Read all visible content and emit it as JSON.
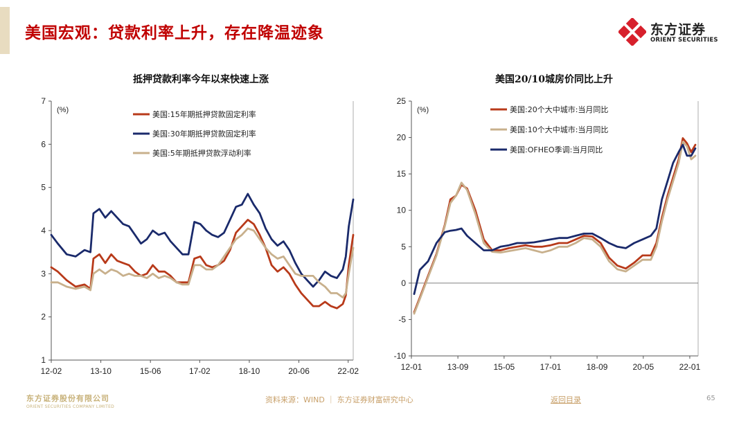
{
  "slide": {
    "title": "美国宏观：贷款利率上升，存在降温迹象",
    "logo_cn": "东方证券",
    "logo_en": "ORIENT SECURITIES",
    "footer_company_cn": "东方证券股份有限公司",
    "footer_company_en": "ORIENT SECURITIES COMPANY LIMITED",
    "source": "资料来源：WIND ｜ 东方证券财富研究中心",
    "back_link": "返回目录",
    "page_number": "65",
    "colors": {
      "title_red": "#c00000",
      "logo_red": "#d7202c",
      "gold": "#c8b27a"
    }
  },
  "chart_data": [
    {
      "type": "line",
      "title": "抵押贷款利率今年以来快速上涨",
      "unit_label": "(%)",
      "xlabel": "",
      "ylabel": "",
      "ylim": [
        1,
        7
      ],
      "yticks": [
        "1",
        "2",
        "3",
        "4",
        "5",
        "6",
        "7"
      ],
      "xlim": [
        2012.08,
        2022.25
      ],
      "xticks": [
        {
          "label": "12-02",
          "t": 2012.08
        },
        {
          "label": "13-10",
          "t": 2013.75
        },
        {
          "label": "15-06",
          "t": 2015.42
        },
        {
          "label": "17-02",
          "t": 2017.08
        },
        {
          "label": "18-10",
          "t": 2018.75
        },
        {
          "label": "20-06",
          "t": 2020.42
        },
        {
          "label": "22-02",
          "t": 2022.08
        }
      ],
      "legend_position": "top-left",
      "series": [
        {
          "name": "美国:15年期抵押贷款固定利率",
          "color": "#b83a1a",
          "x": [
            2012.08,
            2012.3,
            2012.6,
            2012.9,
            2013.2,
            2013.4,
            2013.5,
            2013.7,
            2013.9,
            2014.1,
            2014.3,
            2014.5,
            2014.7,
            2014.9,
            2015.1,
            2015.3,
            2015.5,
            2015.7,
            2015.9,
            2016.1,
            2016.3,
            2016.5,
            2016.7,
            2016.9,
            2017.1,
            2017.3,
            2017.5,
            2017.7,
            2017.9,
            2018.1,
            2018.3,
            2018.5,
            2018.7,
            2018.9,
            2019.1,
            2019.3,
            2019.5,
            2019.7,
            2019.9,
            2020.1,
            2020.3,
            2020.5,
            2020.7,
            2020.9,
            2021.1,
            2021.3,
            2021.5,
            2021.7,
            2021.9,
            2022.0,
            2022.1,
            2022.25
          ],
          "y": [
            3.15,
            3.05,
            2.85,
            2.7,
            2.75,
            2.65,
            3.35,
            3.45,
            3.25,
            3.45,
            3.3,
            3.25,
            3.2,
            3.05,
            2.95,
            3.0,
            3.2,
            3.05,
            3.05,
            2.95,
            2.8,
            2.8,
            2.8,
            3.35,
            3.4,
            3.2,
            3.15,
            3.2,
            3.3,
            3.55,
            3.95,
            4.1,
            4.25,
            4.15,
            3.9,
            3.6,
            3.2,
            3.05,
            3.15,
            3.0,
            2.75,
            2.55,
            2.4,
            2.25,
            2.25,
            2.35,
            2.25,
            2.2,
            2.3,
            2.5,
            3.2,
            3.9
          ]
        },
        {
          "name": "美国:30年期抵押贷款固定利率",
          "color": "#1a2a6b",
          "x": [
            2012.08,
            2012.3,
            2012.6,
            2012.9,
            2013.2,
            2013.4,
            2013.5,
            2013.7,
            2013.9,
            2014.1,
            2014.3,
            2014.5,
            2014.7,
            2014.9,
            2015.1,
            2015.3,
            2015.5,
            2015.7,
            2015.9,
            2016.1,
            2016.3,
            2016.5,
            2016.7,
            2016.9,
            2017.1,
            2017.3,
            2017.5,
            2017.7,
            2017.9,
            2018.1,
            2018.3,
            2018.5,
            2018.7,
            2018.9,
            2019.1,
            2019.3,
            2019.5,
            2019.7,
            2019.9,
            2020.1,
            2020.3,
            2020.5,
            2020.7,
            2020.9,
            2021.1,
            2021.3,
            2021.5,
            2021.7,
            2021.9,
            2022.0,
            2022.1,
            2022.25
          ],
          "y": [
            3.9,
            3.7,
            3.45,
            3.4,
            3.55,
            3.5,
            4.4,
            4.5,
            4.3,
            4.45,
            4.3,
            4.15,
            4.1,
            3.9,
            3.7,
            3.8,
            4.0,
            3.9,
            3.95,
            3.75,
            3.6,
            3.45,
            3.45,
            4.2,
            4.15,
            4.0,
            3.9,
            3.85,
            3.95,
            4.25,
            4.55,
            4.6,
            4.85,
            4.6,
            4.4,
            4.05,
            3.8,
            3.65,
            3.75,
            3.55,
            3.25,
            3.0,
            2.85,
            2.7,
            2.85,
            3.05,
            2.95,
            2.9,
            3.1,
            3.4,
            4.1,
            4.72
          ]
        },
        {
          "name": "美国:5年期抵押贷款浮动利率",
          "color": "#c8b08c",
          "x": [
            2012.08,
            2012.3,
            2012.6,
            2012.9,
            2013.2,
            2013.4,
            2013.5,
            2013.7,
            2013.9,
            2014.1,
            2014.3,
            2014.5,
            2014.7,
            2014.9,
            2015.1,
            2015.3,
            2015.5,
            2015.7,
            2015.9,
            2016.1,
            2016.3,
            2016.5,
            2016.7,
            2016.9,
            2017.1,
            2017.3,
            2017.5,
            2017.7,
            2017.9,
            2018.1,
            2018.3,
            2018.5,
            2018.7,
            2018.9,
            2019.1,
            2019.3,
            2019.5,
            2019.7,
            2019.9,
            2020.1,
            2020.3,
            2020.5,
            2020.7,
            2020.9,
            2021.1,
            2021.3,
            2021.5,
            2021.7,
            2021.9,
            2022.0,
            2022.1,
            2022.25
          ],
          "y": [
            2.8,
            2.8,
            2.7,
            2.65,
            2.7,
            2.62,
            3.0,
            3.1,
            3.0,
            3.1,
            3.05,
            2.95,
            3.0,
            2.95,
            2.95,
            2.9,
            3.0,
            2.9,
            2.95,
            2.9,
            2.8,
            2.75,
            2.75,
            3.2,
            3.2,
            3.1,
            3.1,
            3.2,
            3.4,
            3.6,
            3.8,
            3.9,
            4.05,
            4.0,
            3.8,
            3.6,
            3.45,
            3.35,
            3.4,
            3.2,
            3.0,
            2.95,
            2.95,
            2.95,
            2.8,
            2.7,
            2.55,
            2.55,
            2.45,
            2.55,
            3.0,
            3.6
          ]
        }
      ]
    },
    {
      "type": "line",
      "title": "美国20/10城房价同比上升",
      "unit_label": "(%)",
      "xlabel": "",
      "ylabel": "",
      "ylim": [
        -10,
        25
      ],
      "yticks": [
        "-10",
        "-5",
        "0",
        "5",
        "10",
        "15",
        "20",
        "25"
      ],
      "xlim": [
        2012.0,
        2022.3
      ],
      "xticks": [
        {
          "label": "12-01",
          "t": 2012.0
        },
        {
          "label": "13-09",
          "t": 2013.67
        },
        {
          "label": "15-05",
          "t": 2015.33
        },
        {
          "label": "17-01",
          "t": 2017.0
        },
        {
          "label": "18-09",
          "t": 2018.67
        },
        {
          "label": "20-05",
          "t": 2020.33
        },
        {
          "label": "22-01",
          "t": 2022.0
        }
      ],
      "legend_position": "top-left",
      "series": [
        {
          "name": "美国:20个大中城市:当月同比",
          "color": "#b83a1a",
          "x": [
            2012.1,
            2012.3,
            2012.6,
            2012.9,
            2013.2,
            2013.4,
            2013.6,
            2013.8,
            2014.0,
            2014.3,
            2014.6,
            2014.9,
            2015.2,
            2015.5,
            2015.8,
            2016.1,
            2016.4,
            2016.7,
            2017.0,
            2017.3,
            2017.6,
            2017.9,
            2018.2,
            2018.5,
            2018.8,
            2019.1,
            2019.4,
            2019.7,
            2020.0,
            2020.3,
            2020.6,
            2020.8,
            2021.0,
            2021.2,
            2021.4,
            2021.6,
            2021.75,
            2021.9,
            2022.05,
            2022.2
          ],
          "y": [
            -4.0,
            -2.0,
            1.0,
            4.0,
            8.0,
            11.5,
            12.0,
            13.5,
            13.0,
            10.0,
            6.0,
            4.5,
            4.5,
            4.8,
            5.0,
            5.2,
            5.0,
            5.0,
            5.2,
            5.5,
            5.5,
            6.0,
            6.5,
            6.4,
            5.5,
            3.5,
            2.4,
            2.0,
            2.8,
            3.8,
            3.8,
            5.5,
            9.0,
            12.0,
            14.5,
            17.0,
            19.9,
            19.2,
            18.0,
            19.0
          ]
        },
        {
          "name": "美国:10个大中城市:当月同比",
          "color": "#c8b08c",
          "x": [
            2012.1,
            2012.3,
            2012.6,
            2012.9,
            2013.2,
            2013.4,
            2013.6,
            2013.8,
            2014.0,
            2014.3,
            2014.6,
            2014.9,
            2015.2,
            2015.5,
            2015.8,
            2016.1,
            2016.4,
            2016.7,
            2017.0,
            2017.3,
            2017.6,
            2017.9,
            2018.2,
            2018.5,
            2018.8,
            2019.1,
            2019.4,
            2019.7,
            2020.0,
            2020.3,
            2020.6,
            2020.8,
            2021.0,
            2021.2,
            2021.4,
            2021.6,
            2021.75,
            2021.9,
            2022.05,
            2022.2
          ],
          "y": [
            -4.2,
            -2.2,
            0.8,
            3.8,
            7.8,
            11.0,
            12.0,
            13.8,
            12.8,
            9.5,
            5.5,
            4.3,
            4.2,
            4.4,
            4.6,
            4.8,
            4.5,
            4.2,
            4.5,
            5.0,
            5.0,
            5.5,
            6.2,
            6.0,
            5.0,
            3.0,
            1.9,
            1.6,
            2.4,
            3.2,
            3.2,
            5.0,
            8.5,
            11.5,
            14.0,
            16.5,
            19.4,
            18.8,
            17.0,
            17.5
          ]
        },
        {
          "name": "美国:OFHEO季调:当月同比",
          "color": "#1a2a6b",
          "x": [
            2012.1,
            2012.3,
            2012.6,
            2012.9,
            2013.2,
            2013.4,
            2013.6,
            2013.8,
            2014.0,
            2014.3,
            2014.6,
            2014.9,
            2015.2,
            2015.5,
            2015.8,
            2016.1,
            2016.4,
            2016.7,
            2017.0,
            2017.3,
            2017.6,
            2017.9,
            2018.2,
            2018.5,
            2018.8,
            2019.1,
            2019.4,
            2019.7,
            2020.0,
            2020.3,
            2020.6,
            2020.8,
            2021.0,
            2021.2,
            2021.4,
            2021.6,
            2021.75,
            2021.9,
            2022.05,
            2022.2
          ],
          "y": [
            -1.5,
            1.8,
            3.0,
            5.5,
            7.0,
            7.2,
            7.3,
            7.5,
            6.5,
            5.5,
            4.5,
            4.5,
            5.0,
            5.2,
            5.5,
            5.5,
            5.6,
            5.8,
            6.0,
            6.2,
            6.2,
            6.5,
            6.8,
            6.8,
            6.2,
            5.5,
            5.0,
            4.8,
            5.5,
            6.0,
            6.5,
            7.5,
            11.5,
            14.0,
            16.5,
            18.0,
            19.0,
            17.5,
            17.5,
            18.5
          ]
        }
      ]
    }
  ]
}
